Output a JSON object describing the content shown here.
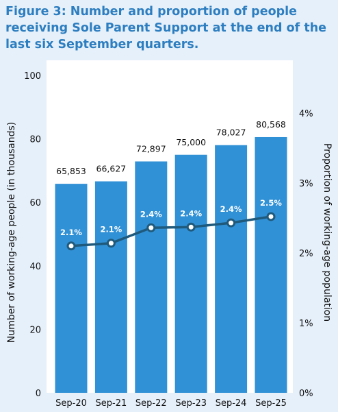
{
  "title": {
    "line1": "Figure 3: Number and proportion of people",
    "line2": "receiving Sole Parent Support at the end of the",
    "line3": "last six September quarters."
  },
  "colors": {
    "background": "#e6f0fa",
    "bar": "#3191d6",
    "line": "#1f5a7c",
    "title": "#2d7ec0"
  },
  "chart_data": {
    "type": "bar",
    "title": "Figure 3: Number and proportion of people receiving Sole Parent Support at the end of the last six September quarters.",
    "categories": [
      "Sep-20",
      "Sep-21",
      "Sep-22",
      "Sep-23",
      "Sep-24",
      "Sep-25"
    ],
    "series": [
      {
        "name": "Number of working-age people (in thousands)",
        "type": "bar",
        "axis": "left",
        "values": [
          65.853,
          66.627,
          72.897,
          75.0,
          78.027,
          80.568
        ],
        "labels": [
          "65,853",
          "66,627",
          "72,897",
          "75,000",
          "78,027",
          "80,568"
        ]
      },
      {
        "name": "Proportion of working-age population",
        "type": "line",
        "axis": "right",
        "values": [
          2.1,
          2.1,
          2.4,
          2.4,
          2.4,
          2.5
        ],
        "plot_values": [
          2.1,
          2.14,
          2.36,
          2.37,
          2.43,
          2.52
        ],
        "labels": [
          "2.1%",
          "2.1%",
          "2.4%",
          "2.4%",
          "2.4%",
          "2.5%"
        ]
      }
    ],
    "ylabel": "Number of working-age people (in thousands)",
    "ylim": [
      0,
      100
    ],
    "yticks": [
      0,
      20,
      40,
      60,
      80,
      100
    ],
    "y2label": "Proportion of working-age population",
    "y2lim": [
      0,
      4.5
    ],
    "y2ticks": [
      0,
      1,
      2,
      3,
      4
    ],
    "y2ticklabels": [
      "0%",
      "1%",
      "2%",
      "3%",
      "4%"
    ],
    "grid": false,
    "legend": "none"
  }
}
